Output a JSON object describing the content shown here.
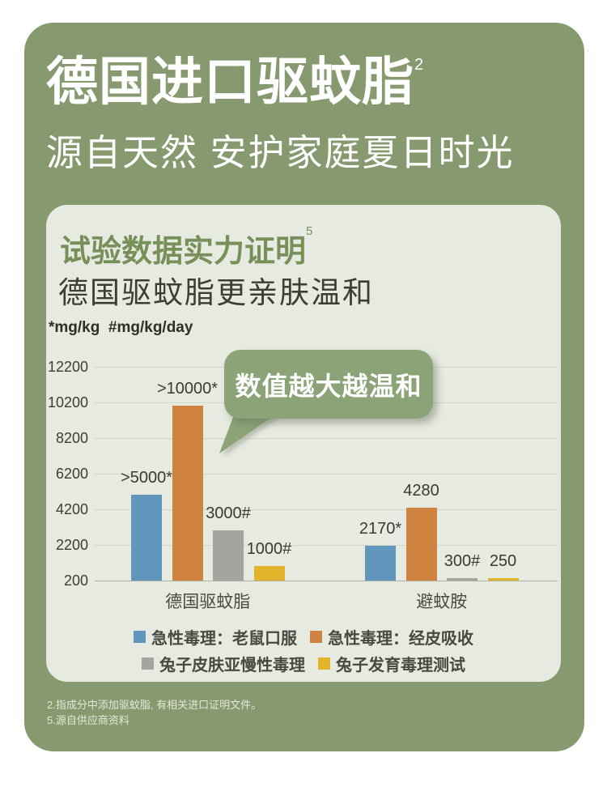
{
  "header": {
    "title": "德国进口驱蚊脂",
    "title_sup": "2",
    "subtitle": "源自天然 安护家庭夏日时光"
  },
  "card": {
    "title": "试验数据实力证明",
    "title_sup": "5",
    "subtitle": "德国驱蚊脂更亲肤温和",
    "units_note": "*mg/kg  #mg/kg/day"
  },
  "chart_data": {
    "type": "bar",
    "title": "试验数据实力证明",
    "subtitle": "德国驱蚊脂更亲肤温和",
    "units_note": "*mg/kg  #mg/kg/day",
    "callout": "数值越大越温和",
    "categories": [
      "德国驱蚊脂",
      "避蚊胺"
    ],
    "series": [
      {
        "name": "急性毒理：老鼠口服",
        "color": "#6297bd",
        "values": [
          5000,
          2170
        ],
        "labels": [
          ">5000*",
          "2170*"
        ]
      },
      {
        "name": "急性毒理：经皮吸收",
        "color": "#d08240",
        "values": [
          10000,
          4280
        ],
        "labels": [
          ">10000*",
          "4280"
        ]
      },
      {
        "name": "兔子皮肤亚慢性毒理",
        "color": "#a4a59e",
        "values": [
          3000,
          300
        ],
        "labels": [
          "3000#",
          "300#"
        ]
      },
      {
        "name": "兔子发育毒理测试",
        "color": "#e1b42c",
        "values": [
          1000,
          250
        ],
        "labels": [
          "1000#",
          "250"
        ]
      }
    ],
    "ylim": [
      200,
      12200
    ],
    "yticks": [
      200,
      2200,
      4200,
      6200,
      8200,
      10200,
      12200
    ],
    "grid": true,
    "legend_position": "bottom"
  },
  "footnotes": [
    "2.指成分中添加驱蚊脂, 有相关进口证明文件。",
    "5.源自供应商资料"
  ],
  "colors": {
    "panel_green": "#87996e",
    "bubble_green": "#8ba377",
    "card_bg": "#e7eae0",
    "title_green": "#77905a"
  }
}
